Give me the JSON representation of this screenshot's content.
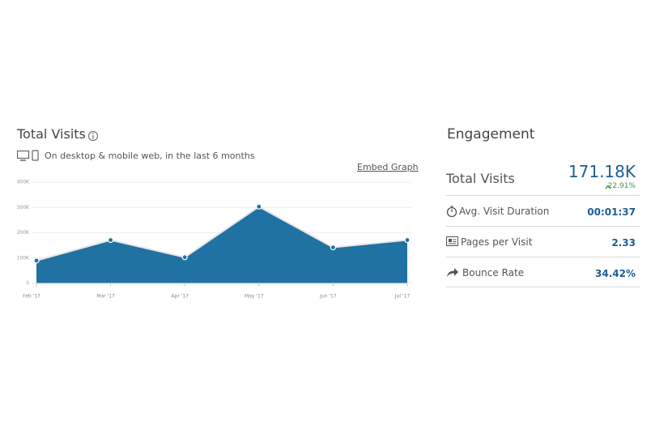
{
  "chart_data": {
    "type": "area",
    "title": "Total Visits",
    "subtitle": "On desktop & mobile web, in the last 6 months",
    "embed_link": "Embed Graph",
    "categories": [
      "Feb '17",
      "Mar '17",
      "Apr '17",
      "May '17",
      "Jun '17",
      "Jul '17"
    ],
    "values": [
      90000,
      171000,
      103000,
      303000,
      142000,
      171000
    ],
    "color": "#1f72a1",
    "ylim": [
      0,
      400000
    ],
    "yticks": [
      0,
      {
        "value": 100000,
        "label": "100K"
      },
      {
        "value": 200000,
        "label": "200K"
      },
      {
        "value": 300000,
        "label": "300K"
      },
      {
        "value": 400000,
        "label": "400K"
      }
    ],
    "grid": true
  },
  "engagement": {
    "title": "Engagement",
    "total_visits": {
      "label": "Total Visits",
      "value": "171.18K",
      "change": "22.91%"
    },
    "rows": [
      {
        "label": "Avg. Visit Duration",
        "value": "00:01:37"
      },
      {
        "label": "Pages per Visit",
        "value": "2.33"
      },
      {
        "label": "Bounce Rate",
        "value": "34.42%"
      }
    ]
  }
}
